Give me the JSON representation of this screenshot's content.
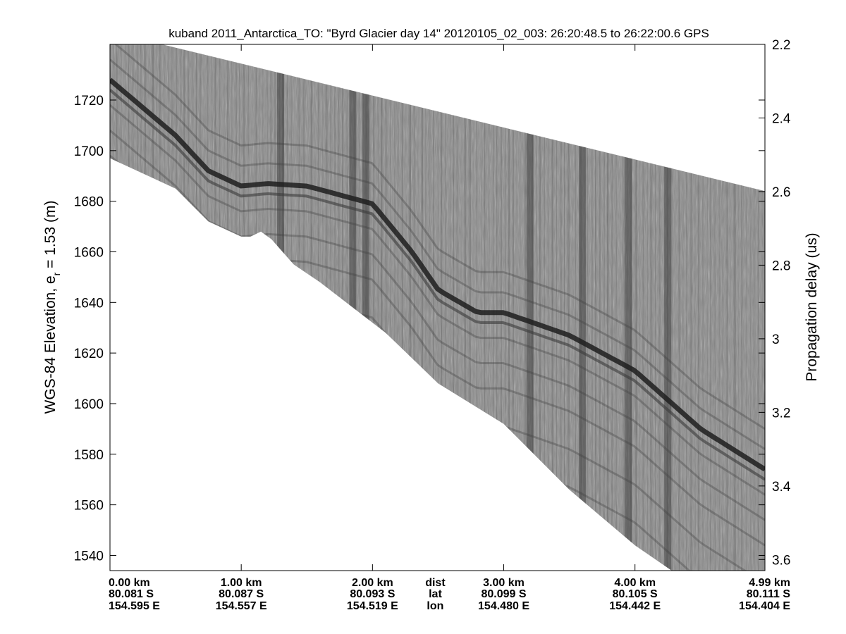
{
  "chart_data": {
    "type": "heatmap",
    "title": "kuband 2011_Antarctica_TO: \"Byrd Glacier day 14\"  20120105_02_003: 26:20:48.5 to 26:22:00.6 GPS",
    "ylabel_left": {
      "main": "WGS-84 Elevation, e",
      "subscript": "r",
      "suffix": " = 1.53 (m)"
    },
    "ylabel_right": "Propagation delay (us)",
    "ylim_left": [
      1534,
      1742
    ],
    "ylim_right": [
      2.2,
      3.63
    ],
    "y_ticks_left": [
      1540,
      1560,
      1580,
      1600,
      1620,
      1640,
      1660,
      1680,
      1700,
      1720
    ],
    "y_ticks_right": [
      2.2,
      2.4,
      2.6,
      2.8,
      3,
      3.2,
      3.4,
      3.6
    ],
    "y_ticks_right_labels": [
      "2.2",
      "2.4",
      "2.6",
      "2.8",
      "3",
      "3.2",
      "3.4",
      "3.6"
    ],
    "xlim_km": [
      0,
      4.99
    ],
    "x_ticks": [
      {
        "dist": "0.00 km",
        "lat": "80.081 S",
        "lon": "154.595 E",
        "km": 0.0,
        "anchor": "start"
      },
      {
        "dist": "1.00 km",
        "lat": "80.087 S",
        "lon": "154.557 E",
        "km": 1.0,
        "anchor": "middle"
      },
      {
        "dist": "2.00 km",
        "lat": "80.093 S",
        "lon": "154.519 E",
        "km": 2.0,
        "anchor": "middle"
      },
      {
        "dist": "3.00 km",
        "lat": "80.099 S",
        "lon": "154.480 E",
        "km": 3.0,
        "anchor": "middle"
      },
      {
        "dist": "4.00 km",
        "lat": "80.105 S",
        "lon": "154.442 E",
        "km": 4.0,
        "anchor": "middle"
      },
      {
        "dist": "4.99 km",
        "lat": "80.111 S",
        "lon": "154.404 E",
        "km": 4.99,
        "anchor": "end"
      }
    ],
    "row_labels": {
      "dist": "dist",
      "lat": "lat",
      "lon": "lon",
      "km": 2.5
    },
    "data_top_elevation": [
      [
        0,
        1747
      ],
      [
        4.99,
        1684
      ]
    ],
    "data_bottom_elevation": [
      [
        0,
        1697
      ],
      [
        0.5,
        1685
      ],
      [
        0.75,
        1672
      ],
      [
        1.0,
        1666
      ],
      [
        1.07,
        1666
      ],
      [
        1.15,
        1668
      ],
      [
        1.23,
        1665
      ],
      [
        1.4,
        1655
      ],
      [
        1.6,
        1648
      ],
      [
        1.85,
        1638
      ],
      [
        2.1,
        1628
      ],
      [
        2.5,
        1608
      ],
      [
        3.0,
        1592
      ],
      [
        3.5,
        1566
      ],
      [
        4.0,
        1544
      ],
      [
        4.28,
        1534
      ]
    ],
    "surface_layer_elevation": [
      [
        0,
        1728
      ],
      [
        0.5,
        1706
      ],
      [
        0.75,
        1692
      ],
      [
        1.0,
        1686
      ],
      [
        1.2,
        1687
      ],
      [
        1.5,
        1686
      ],
      [
        2.0,
        1679
      ],
      [
        2.3,
        1660
      ],
      [
        2.5,
        1645
      ],
      [
        2.8,
        1636
      ],
      [
        3.0,
        1636
      ],
      [
        3.5,
        1627
      ],
      [
        4.0,
        1613
      ],
      [
        4.5,
        1590
      ],
      [
        4.99,
        1574
      ]
    ],
    "dark_vertical_bands_km": [
      1.3,
      1.85,
      1.95,
      3.2,
      3.6,
      3.95,
      4.25
    ],
    "colormap": "gray"
  }
}
